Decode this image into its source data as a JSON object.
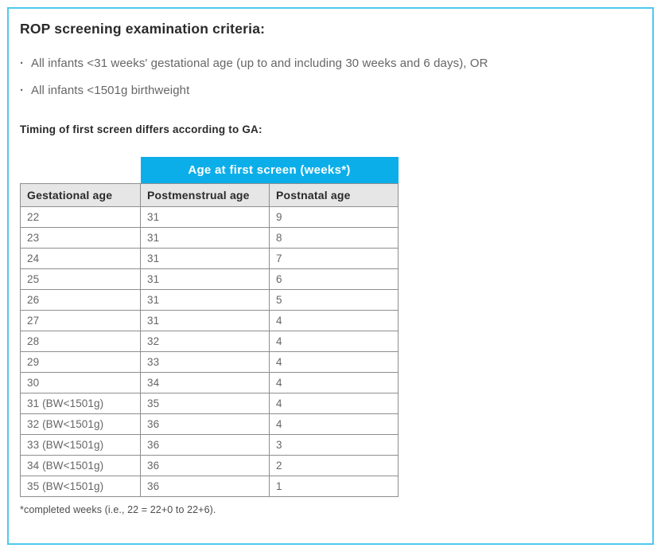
{
  "colors": {
    "panel_border": "#4ec9ef",
    "table_header_bg": "#0caee9",
    "table_header_text": "#ffffff",
    "column_header_bg": "#e6e6e6",
    "cell_border": "#8e8e8e"
  },
  "bullet_glyph": "·",
  "title": "ROP screening examination criteria:",
  "criteria": [
    "All infants <31 weeks' gestational age (up to and including 30 weeks and 6 days), OR",
    "All infants <1501g birthweight"
  ],
  "subtitle": "Timing of first screen differs according to GA:",
  "table": {
    "span_header": "Age at first screen (weeks*)",
    "columns": [
      "Gestational age",
      "Postmenstrual age",
      "Postnatal age"
    ],
    "rows": [
      [
        "22",
        "31",
        "9"
      ],
      [
        "23",
        "31",
        "8"
      ],
      [
        "24",
        "31",
        "7"
      ],
      [
        "25",
        "31",
        "6"
      ],
      [
        "26",
        "31",
        "5"
      ],
      [
        "27",
        "31",
        "4"
      ],
      [
        "28",
        "32",
        "4"
      ],
      [
        "29",
        "33",
        "4"
      ],
      [
        "30",
        "34",
        "4"
      ],
      [
        "31 (BW<1501g)",
        "35",
        "4"
      ],
      [
        "32 (BW<1501g)",
        "36",
        "4"
      ],
      [
        "33 (BW<1501g)",
        "36",
        "3"
      ],
      [
        "34 (BW<1501g)",
        "36",
        "2"
      ],
      [
        "35 (BW<1501g)",
        "36",
        "1"
      ]
    ],
    "footnote": "*completed weeks (i.e., 22 = 22+0 to 22+6)."
  }
}
